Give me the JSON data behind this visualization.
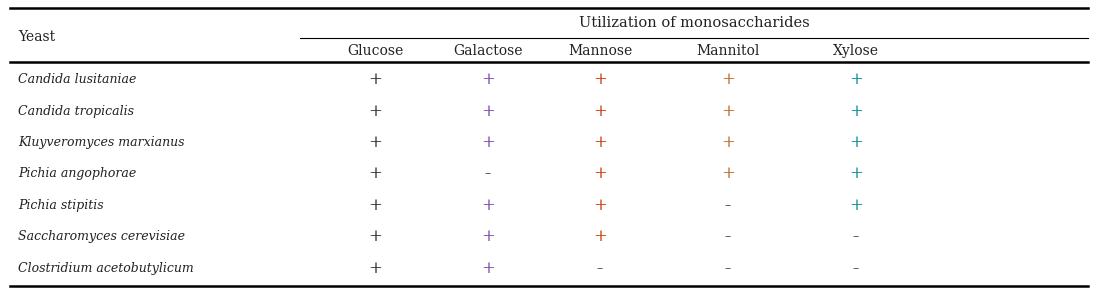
{
  "title": "Utilization of monosaccharides",
  "yeast_label": "Yeast",
  "col_headers": [
    "Glucose",
    "Galactose",
    "Mannose",
    "Mannitol",
    "Xylose"
  ],
  "row_labels": [
    "Candida lusitaniae",
    "Candida tropicalis",
    "Kluyveromyces marxianus",
    "Pichia angophorae",
    "Pichia stipitis",
    "Saccharomyces cerevisiae",
    "Clostridium acetobutylicum"
  ],
  "data": [
    [
      "+",
      "+",
      "+",
      "+",
      "+"
    ],
    [
      "+",
      "+",
      "+",
      "+",
      "+"
    ],
    [
      "+",
      "+",
      "+",
      "+",
      "+"
    ],
    [
      "+",
      "-",
      "+",
      "+",
      "+"
    ],
    [
      "+",
      "+",
      "+",
      "-",
      "+"
    ],
    [
      "+",
      "+",
      "+",
      "-",
      "-"
    ],
    [
      "+",
      "+",
      "-",
      "-",
      "-"
    ]
  ],
  "col_colors": [
    "#2b2b2b",
    "#7744aa",
    "#cc3300",
    "#bb6622",
    "#008899"
  ],
  "minus_color": "#333333",
  "bg_color": "#ffffff",
  "line_color": "#000000"
}
